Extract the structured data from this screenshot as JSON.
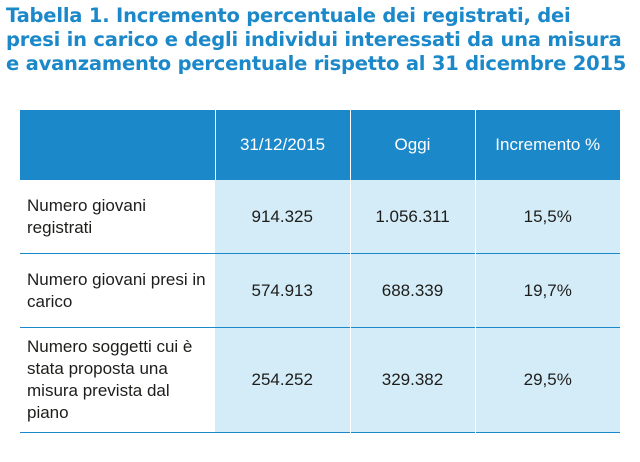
{
  "caption": {
    "lines": [
      "Tabella 1. Incremento percentuale dei registrati, dei",
      "presi in carico e degli individui interessati da una misura",
      "e avanzamento percentuale rispetto al 31 dicembre 2015"
    ]
  },
  "table": {
    "headers": [
      "",
      "31/12/2015",
      "Oggi",
      "Incremento %"
    ],
    "rows": [
      {
        "label": "Numero giovani registrati",
        "values": [
          "914.325",
          "1.056.311",
          "15,5%"
        ]
      },
      {
        "label": "Numero giovani presi in carico",
        "values": [
          "574.913",
          "688.339",
          "19,7%"
        ]
      },
      {
        "label": "Numero soggetti cui è stata proposta una misura prevista dal piano",
        "values": [
          "254.252",
          "329.382",
          "29,5%"
        ]
      }
    ]
  },
  "colors": {
    "accent": "#1b88c9",
    "cell_fill": "#d4ecf7",
    "text": "#1d1d1b"
  }
}
